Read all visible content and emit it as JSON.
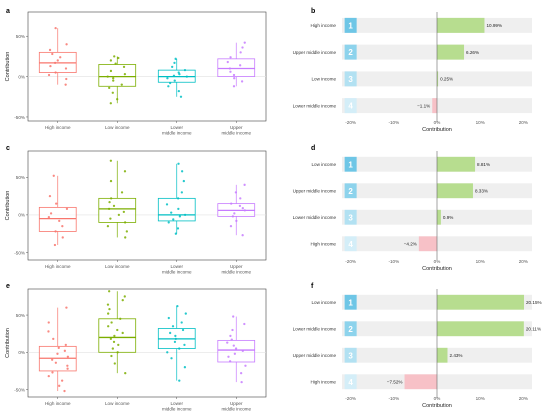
{
  "colors": {
    "high_income": "#f8766d",
    "low_income": "#7cae00",
    "lower_middle_income": "#00bfc4",
    "upper_middle_income": "#c77cff",
    "positive_bar": "#b7dd8f",
    "negative_bar": "#f7c1c7",
    "rank_1": "#6ec6e6",
    "rank_2": "#8dd3ec",
    "rank_3": "#b2e1f2",
    "rank_4": "#d4eef8",
    "row_bg": "#efefef",
    "panel_border": "#444444"
  },
  "chart_data": [
    {
      "panel": "a",
      "type": "box",
      "ylabel": "Contribution",
      "yticks": [
        "-50%",
        "0%",
        "50%"
      ],
      "ylim": [
        -55,
        80
      ],
      "categories": [
        "High income",
        "Low income",
        "Lower middle income",
        "Upper middle income"
      ],
      "category_labels": [
        [
          "High income"
        ],
        [
          "Low income"
        ],
        [
          "Lower",
          "middle income"
        ],
        [
          "Upper",
          "middle income"
        ]
      ],
      "boxes": [
        {
          "min": -10,
          "q1": 5,
          "median": 17,
          "q3": 30,
          "max": 60
        },
        {
          "min": -33,
          "q1": -12,
          "median": 0,
          "q3": 15,
          "max": 25
        },
        {
          "min": -25,
          "q1": -7,
          "median": 0,
          "q3": 8,
          "max": 22
        },
        {
          "min": -12,
          "q1": 0,
          "median": 10,
          "q3": 22,
          "max": 42
        }
      ],
      "points": [
        [
          -10,
          -3,
          2,
          5,
          10,
          13,
          17,
          20,
          24,
          28,
          33,
          40,
          60
        ],
        [
          -33,
          -28,
          -20,
          -14,
          -10,
          -5,
          -2,
          0,
          3,
          7,
          12,
          16,
          20,
          23,
          25
        ],
        [
          -25,
          -18,
          -12,
          -8,
          -5,
          -2,
          0,
          1,
          3,
          5,
          8,
          12,
          17,
          22
        ],
        [
          -12,
          -6,
          -2,
          2,
          6,
          10,
          14,
          18,
          24,
          30,
          36,
          42
        ]
      ]
    },
    {
      "panel": "b",
      "type": "ranked_bar",
      "xlabel": "Contribution",
      "xticks": [
        "-20%",
        "-10%",
        "0%",
        "10%",
        "20%"
      ],
      "xlim": [
        -22,
        22
      ],
      "rows": [
        {
          "rank": "1",
          "category": "High income",
          "value": 10.99,
          "label": "10.99%"
        },
        {
          "rank": "2",
          "category": "Upper middle income",
          "value": 6.26,
          "label": "6.26%"
        },
        {
          "rank": "3",
          "category": "Low income",
          "value": 0.25,
          "label": "0.25%"
        },
        {
          "rank": "4",
          "category": "Lower middle income",
          "value": -1.1,
          "label": "−1.1%"
        }
      ]
    },
    {
      "panel": "c",
      "type": "box",
      "ylabel": "Contribution",
      "yticks": [
        "-50%",
        "0%",
        "50%"
      ],
      "ylim": [
        -60,
        85
      ],
      "categories": [
        "High income",
        "Low income",
        "Lower middle income",
        "Upper middle income"
      ],
      "category_labels": [
        [
          "High income"
        ],
        [
          "Low income"
        ],
        [
          "Lower",
          "middle income"
        ],
        [
          "Upper",
          "middle income"
        ]
      ],
      "boxes": [
        {
          "min": -40,
          "q1": -22,
          "median": -5,
          "q3": 10,
          "max": 52
        },
        {
          "min": -30,
          "q1": -10,
          "median": 8,
          "q3": 22,
          "max": 72
        },
        {
          "min": -25,
          "q1": -8,
          "median": 0,
          "q3": 22,
          "max": 68
        },
        {
          "min": -27,
          "q1": -2,
          "median": 6,
          "q3": 15,
          "max": 40
        }
      ],
      "points": [
        [
          -40,
          -30,
          -22,
          -15,
          -8,
          -3,
          2,
          8,
          15,
          25,
          52
        ],
        [
          -30,
          -22,
          -15,
          -10,
          -5,
          0,
          4,
          8,
          12,
          17,
          22,
          30,
          45,
          58,
          72
        ],
        [
          -25,
          -18,
          -10,
          -6,
          -2,
          0,
          3,
          8,
          14,
          22,
          30,
          45,
          58,
          68
        ],
        [
          -27,
          -15,
          -8,
          -2,
          2,
          6,
          9,
          12,
          15,
          22,
          30,
          40
        ]
      ]
    },
    {
      "panel": "d",
      "type": "ranked_bar",
      "xlabel": "Contribution",
      "xticks": [
        "-20%",
        "-10%",
        "0%",
        "10%",
        "20%"
      ],
      "xlim": [
        -22,
        22
      ],
      "rows": [
        {
          "rank": "1",
          "category": "Low income",
          "value": 8.81,
          "label": "8.81%"
        },
        {
          "rank": "2",
          "category": "Upper middle income",
          "value": 8.33,
          "label": "8.33%"
        },
        {
          "rank": "3",
          "category": "Lower middle income",
          "value": 0.9,
          "label": "0.9%"
        },
        {
          "rank": "4",
          "category": "High income",
          "value": -4.2,
          "label": "−4.2%"
        }
      ]
    },
    {
      "panel": "e",
      "type": "box",
      "ylabel": "Contribution",
      "yticks": [
        "-50%",
        "0%",
        "50%"
      ],
      "ylim": [
        -60,
        85
      ],
      "categories": [
        "High income",
        "Low income",
        "Lower middle income",
        "Upper middle income"
      ],
      "category_labels": [
        [
          "High income"
        ],
        [
          "Low income"
        ],
        [
          "Lower",
          "middle income"
        ],
        [
          "Upper",
          "middle income"
        ]
      ],
      "boxes": [
        {
          "min": -52,
          "q1": -25,
          "median": -8,
          "q3": 8,
          "max": 60
        },
        {
          "min": -28,
          "q1": 0,
          "median": 20,
          "q3": 45,
          "max": 82
        },
        {
          "min": -38,
          "q1": 5,
          "median": 18,
          "q3": 32,
          "max": 62
        },
        {
          "min": -40,
          "q1": -13,
          "median": 3,
          "q3": 16,
          "max": 48
        }
      ],
      "points": [
        [
          -52,
          -45,
          -38,
          -32,
          -27,
          -22,
          -18,
          -14,
          -10,
          -6,
          -2,
          2,
          6,
          10,
          18,
          28,
          40,
          60
        ],
        [
          -28,
          -15,
          -5,
          0,
          5,
          10,
          14,
          18,
          22,
          26,
          30,
          35,
          40,
          45,
          52,
          58,
          64,
          70,
          75,
          82
        ],
        [
          -38,
          -20,
          -8,
          0,
          5,
          10,
          14,
          18,
          22,
          26,
          30,
          35,
          40,
          46,
          52,
          62
        ],
        [
          -40,
          -28,
          -18,
          -12,
          -6,
          -2,
          2,
          5,
          9,
          13,
          17,
          22,
          30,
          38,
          48
        ]
      ]
    },
    {
      "panel": "f",
      "type": "ranked_bar",
      "xlabel": "Contribution",
      "xticks": [
        "-20%",
        "-10%",
        "0%",
        "10%",
        "20%"
      ],
      "xlim": [
        -22,
        22
      ],
      "rows": [
        {
          "rank": "1",
          "category": "Low income",
          "value": 20.15,
          "label": "20.15%"
        },
        {
          "rank": "2",
          "category": "Lower middle income",
          "value": 20.11,
          "label": "20.11%"
        },
        {
          "rank": "3",
          "category": "Upper middle income",
          "value": 2.43,
          "label": "2.43%"
        },
        {
          "rank": "4",
          "category": "High income",
          "value": -7.52,
          "label": "−7.52%"
        }
      ]
    }
  ]
}
